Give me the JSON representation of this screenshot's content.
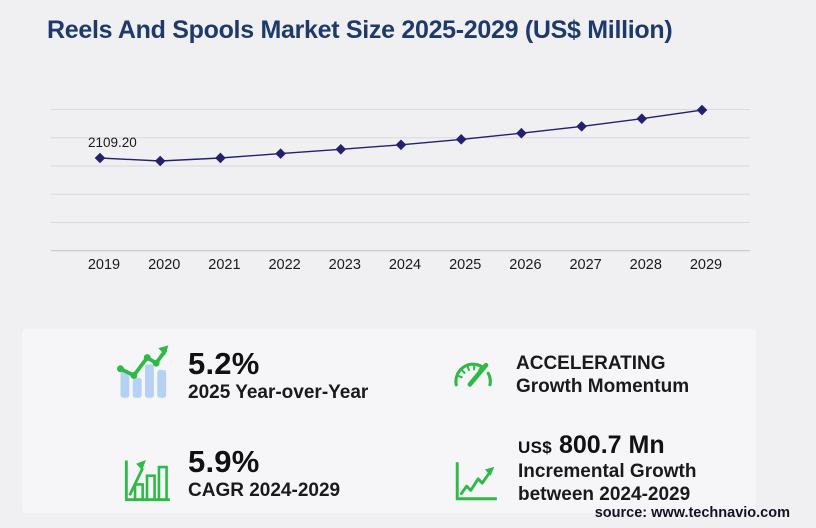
{
  "title": "Reels And Spools Market Size 2025-2029 (US$ Million)",
  "source_text": "source: www.technavio.com",
  "colors": {
    "accent_green": "#2fba47",
    "bar_blue": "#b6d2f2",
    "line_navy": "#232070",
    "title_navy": "#1d3a6b",
    "gridline": "#d9d9de",
    "axis_line": "#bfbfc6",
    "label_text": "#1a1a1a"
  },
  "chart_data": {
    "type": "line",
    "title": "Reels And Spools Market Size 2025-2029 (US$ Million)",
    "x": [
      2019,
      2020,
      2021,
      2022,
      2023,
      2024,
      2025,
      2026,
      2027,
      2028,
      2029
    ],
    "series": [
      {
        "name": "Market size (US$ Million)",
        "values": [
          2109.2,
          2040,
          2110,
          2210,
          2310,
          2413.3,
          2538.8,
          2680,
          2838,
          3014,
          3214
        ]
      }
    ],
    "data_labels": [
      {
        "x": 2019,
        "text": "2109.20"
      }
    ],
    "marker": "diamond",
    "grid": "horizontal-only",
    "legend": "none",
    "ylim": [
      1950,
      3250
    ]
  },
  "stats": [
    {
      "value": "5.2%",
      "label": "2025 Year-over-Year",
      "icon": "bar-chart-trend-icon"
    },
    {
      "value": "5.9%",
      "label": "CAGR 2024-2029",
      "icon": "bar-chart-arrow-icon"
    },
    {
      "value": "ACCELERATING",
      "label": "Growth Momentum",
      "icon": "speedometer-icon"
    },
    {
      "value_prefix": "US$",
      "value": "800.7 Mn",
      "label": "Incremental Growth",
      "label_line2": "between 2024-2029",
      "icon": "growth-line-icon"
    }
  ]
}
